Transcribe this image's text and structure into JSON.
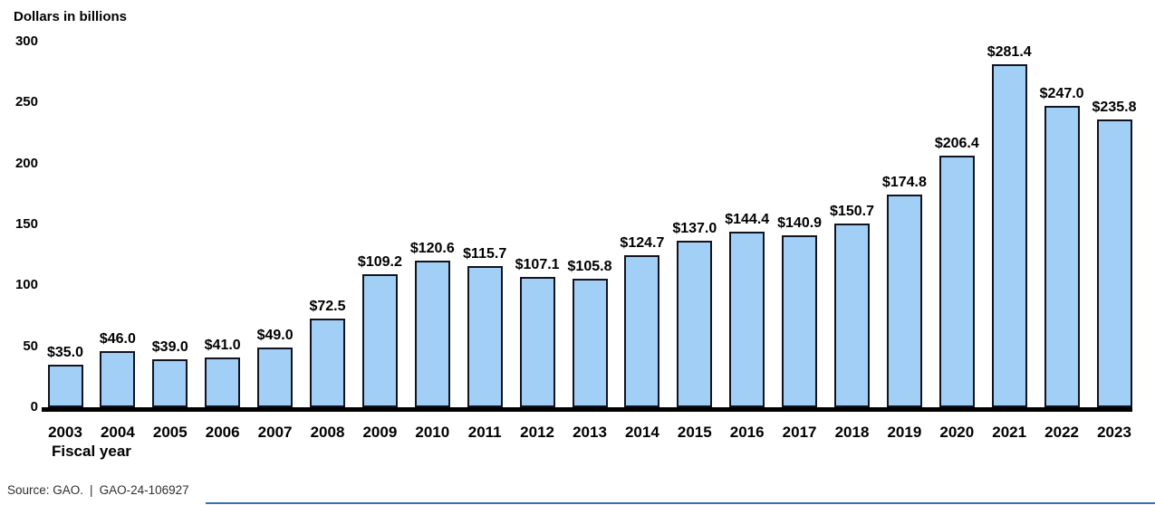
{
  "chart_data": {
    "type": "bar",
    "title": "Dollars in billions",
    "xlabel": "Fiscal year",
    "ylabel": "Dollars in billions",
    "categories": [
      "2003",
      "2004",
      "2005",
      "2006",
      "2007",
      "2008",
      "2009",
      "2010",
      "2011",
      "2012",
      "2013",
      "2014",
      "2015",
      "2016",
      "2017",
      "2018",
      "2019",
      "2020",
      "2021",
      "2022",
      "2023"
    ],
    "values": [
      35.0,
      46.0,
      39.0,
      41.0,
      49.0,
      72.5,
      109.2,
      120.6,
      115.7,
      107.1,
      105.8,
      124.7,
      137.0,
      144.4,
      140.9,
      150.7,
      174.8,
      206.4,
      281.4,
      247.0,
      235.8
    ],
    "value_labels": [
      "$35.0",
      "$46.0",
      "$39.0",
      "$41.0",
      "$49.0",
      "$72.5",
      "$109.2",
      "$120.6",
      "$115.7",
      "$107.1",
      "$105.8",
      "$124.7",
      "$137.0",
      "$144.4",
      "$140.9",
      "$150.7",
      "$174.8",
      "$206.4",
      "$281.4",
      "$247.0",
      "$235.8"
    ],
    "yticks": [
      0,
      50,
      100,
      150,
      200,
      250,
      300
    ],
    "ylim": [
      0,
      300
    ],
    "grid": false,
    "legend": "none",
    "bar_fill": "#a2cff5",
    "bar_border": "#13131f"
  },
  "footer": {
    "source": "Source: GAO.",
    "separator": "|",
    "report_number": "GAO-24-106927"
  },
  "colors": {
    "text": "#000000",
    "source_text": "#2e2e2e",
    "axis_line": "#000000",
    "bottom_rule": "#3a6fad"
  }
}
